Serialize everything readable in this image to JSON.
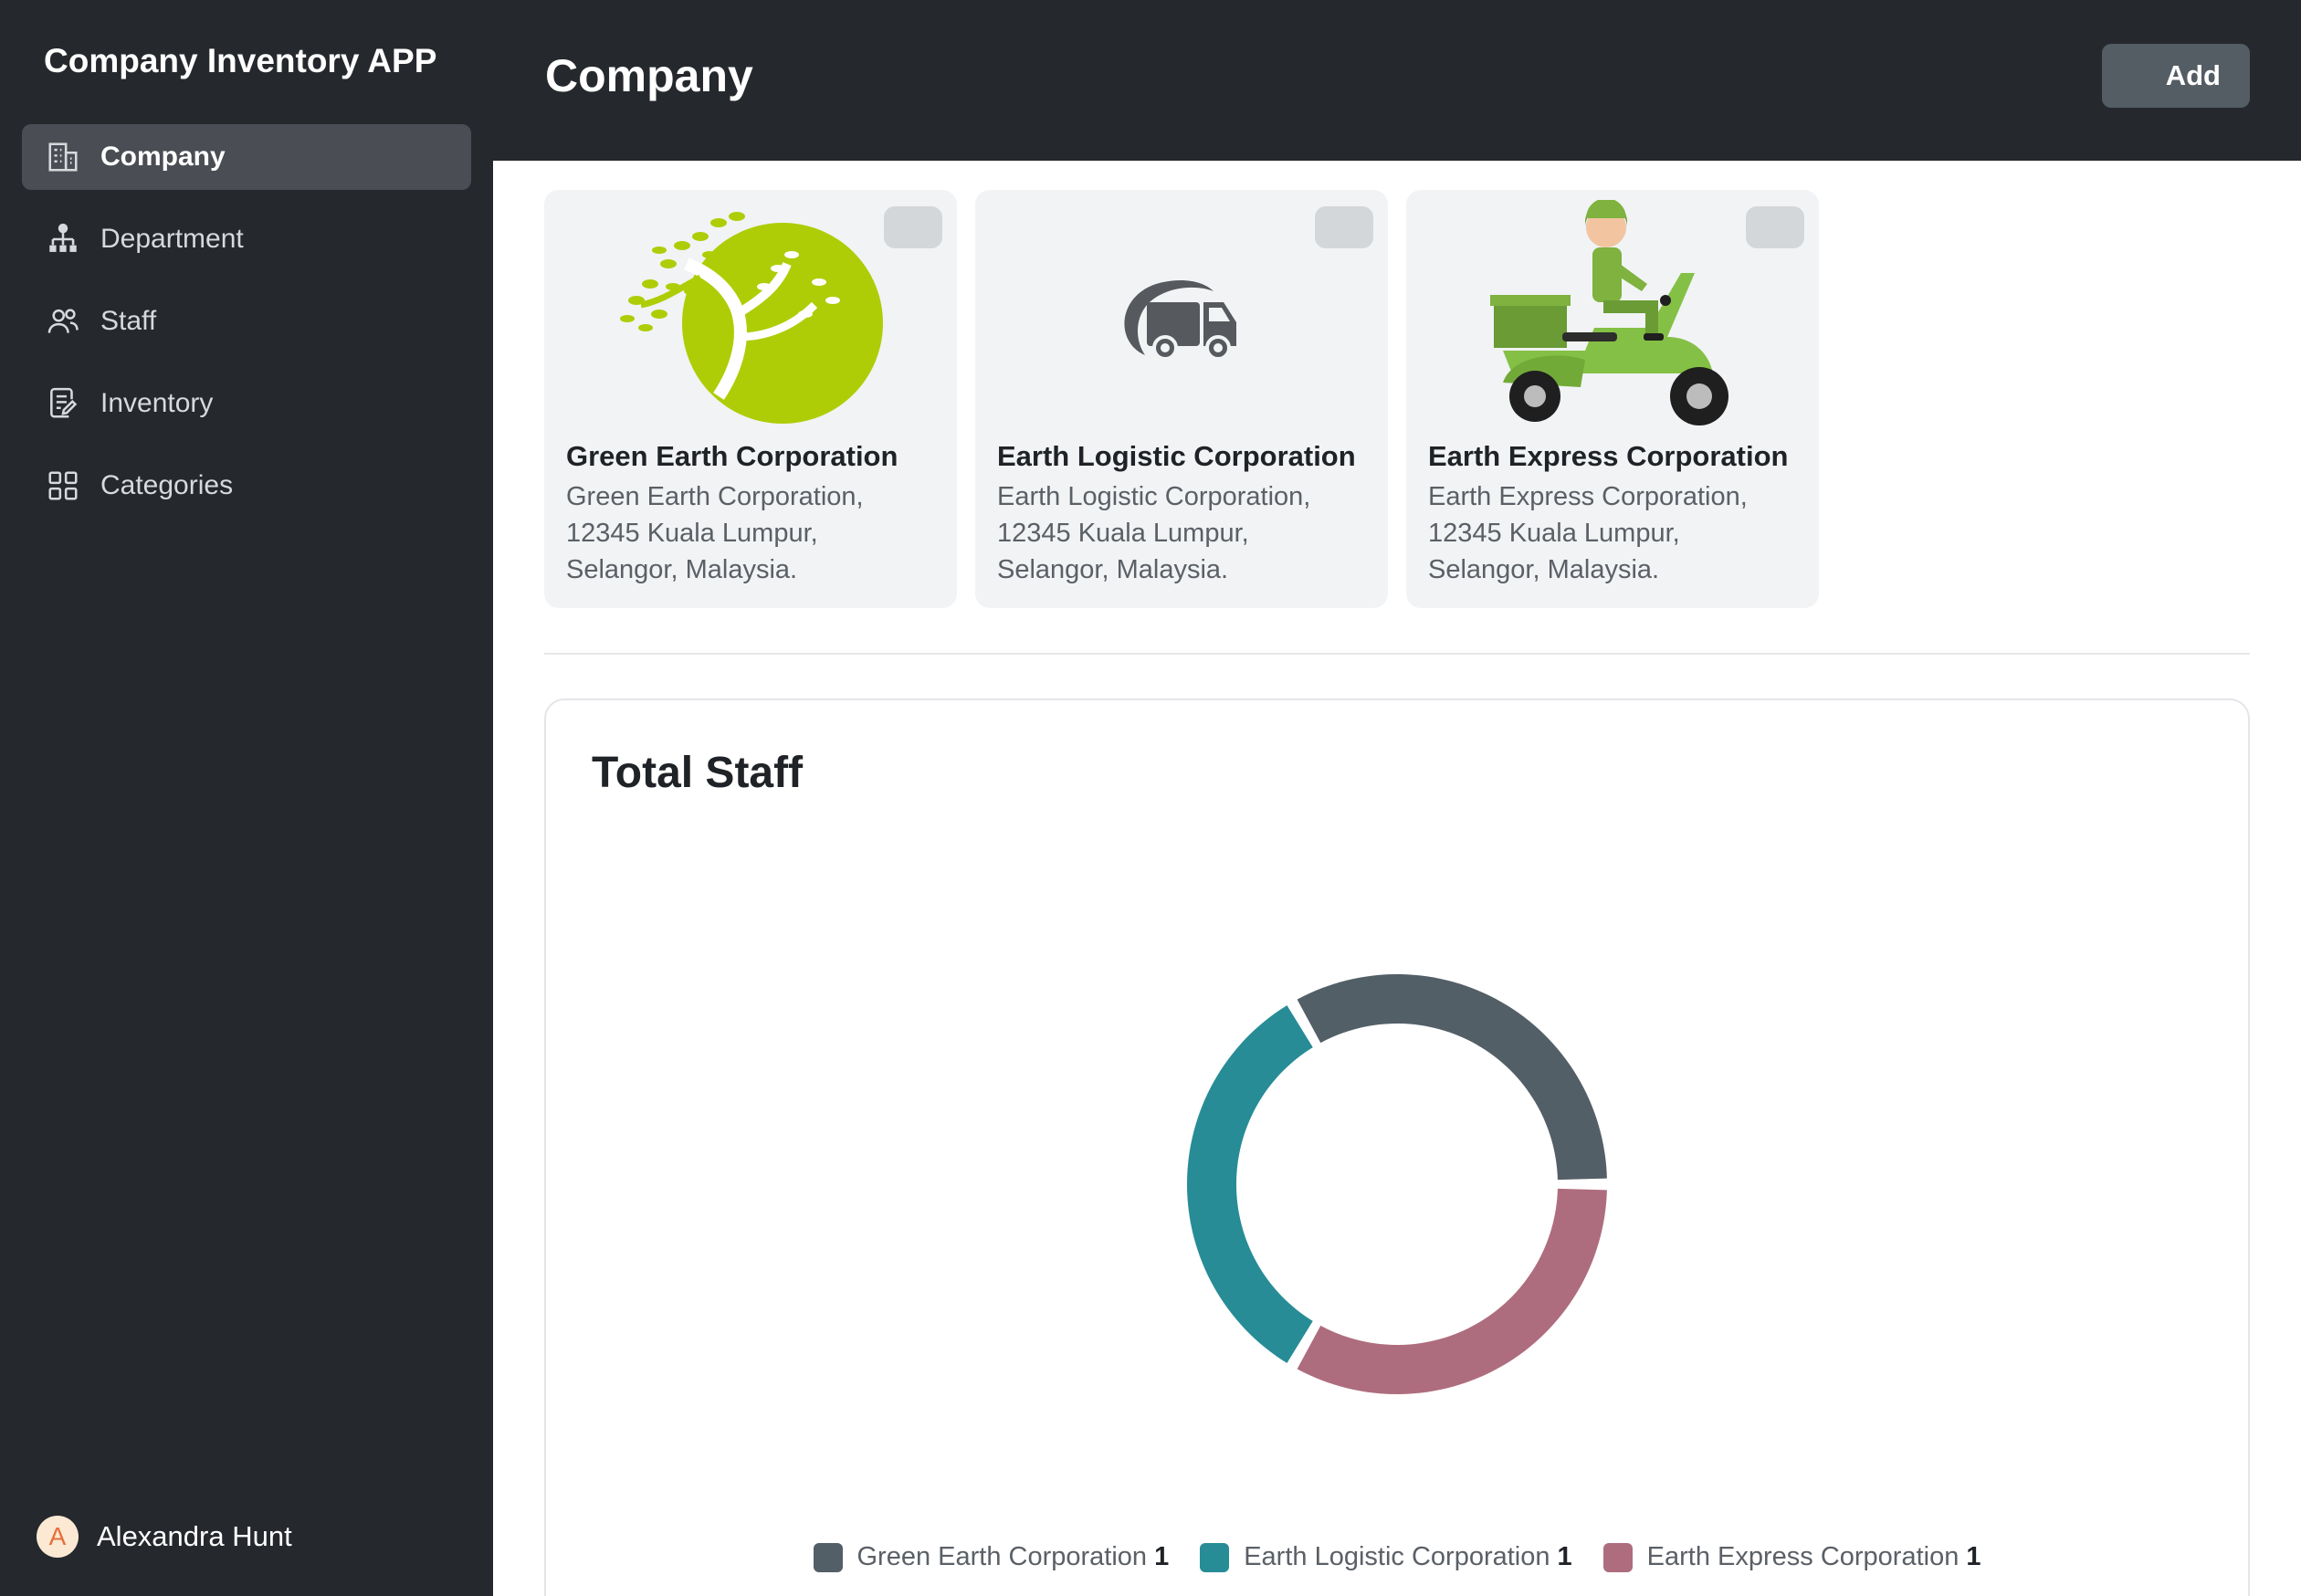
{
  "app": {
    "title": "Company Inventory APP"
  },
  "sidebar": {
    "items": [
      {
        "label": "Company",
        "icon": "building-icon",
        "active": true
      },
      {
        "label": "Department",
        "icon": "org-chart-icon",
        "active": false
      },
      {
        "label": "Staff",
        "icon": "users-icon",
        "active": false
      },
      {
        "label": "Inventory",
        "icon": "clipboard-edit-icon",
        "active": false
      },
      {
        "label": "Categories",
        "icon": "grid-icon",
        "active": false
      }
    ],
    "user": {
      "initial": "A",
      "name": "Alexandra Hunt"
    }
  },
  "header": {
    "title": "Company",
    "add_label": "Add"
  },
  "companies": [
    {
      "name": "Green Earth Corporation",
      "address": "Green Earth Corporation, 12345 Kuala Lumpur, Selangor, Malaysia.",
      "logo": "tree-logo"
    },
    {
      "name": "Earth Logistic Corporation",
      "address": "Earth Logistic Corporation, 12345 Kuala Lumpur, Selangor, Malaysia.",
      "logo": "truck-logo"
    },
    {
      "name": "Earth Express Corporation",
      "address": "Earth Express Corporation, 12345 Kuala Lumpur, Selangor, Malaysia.",
      "logo": "scooter-courier-logo"
    }
  ],
  "chart_panel": {
    "title": "Total Staff"
  },
  "chart_data": {
    "type": "pie",
    "title": "Total Staff",
    "categories": [
      "Green Earth Corporation",
      "Earth Logistic Corporation",
      "Earth Express Corporation"
    ],
    "values": [
      1,
      1,
      1
    ],
    "colors": [
      "#535f67",
      "#278c96",
      "#ae6d7e"
    ],
    "legend": "bottom"
  }
}
